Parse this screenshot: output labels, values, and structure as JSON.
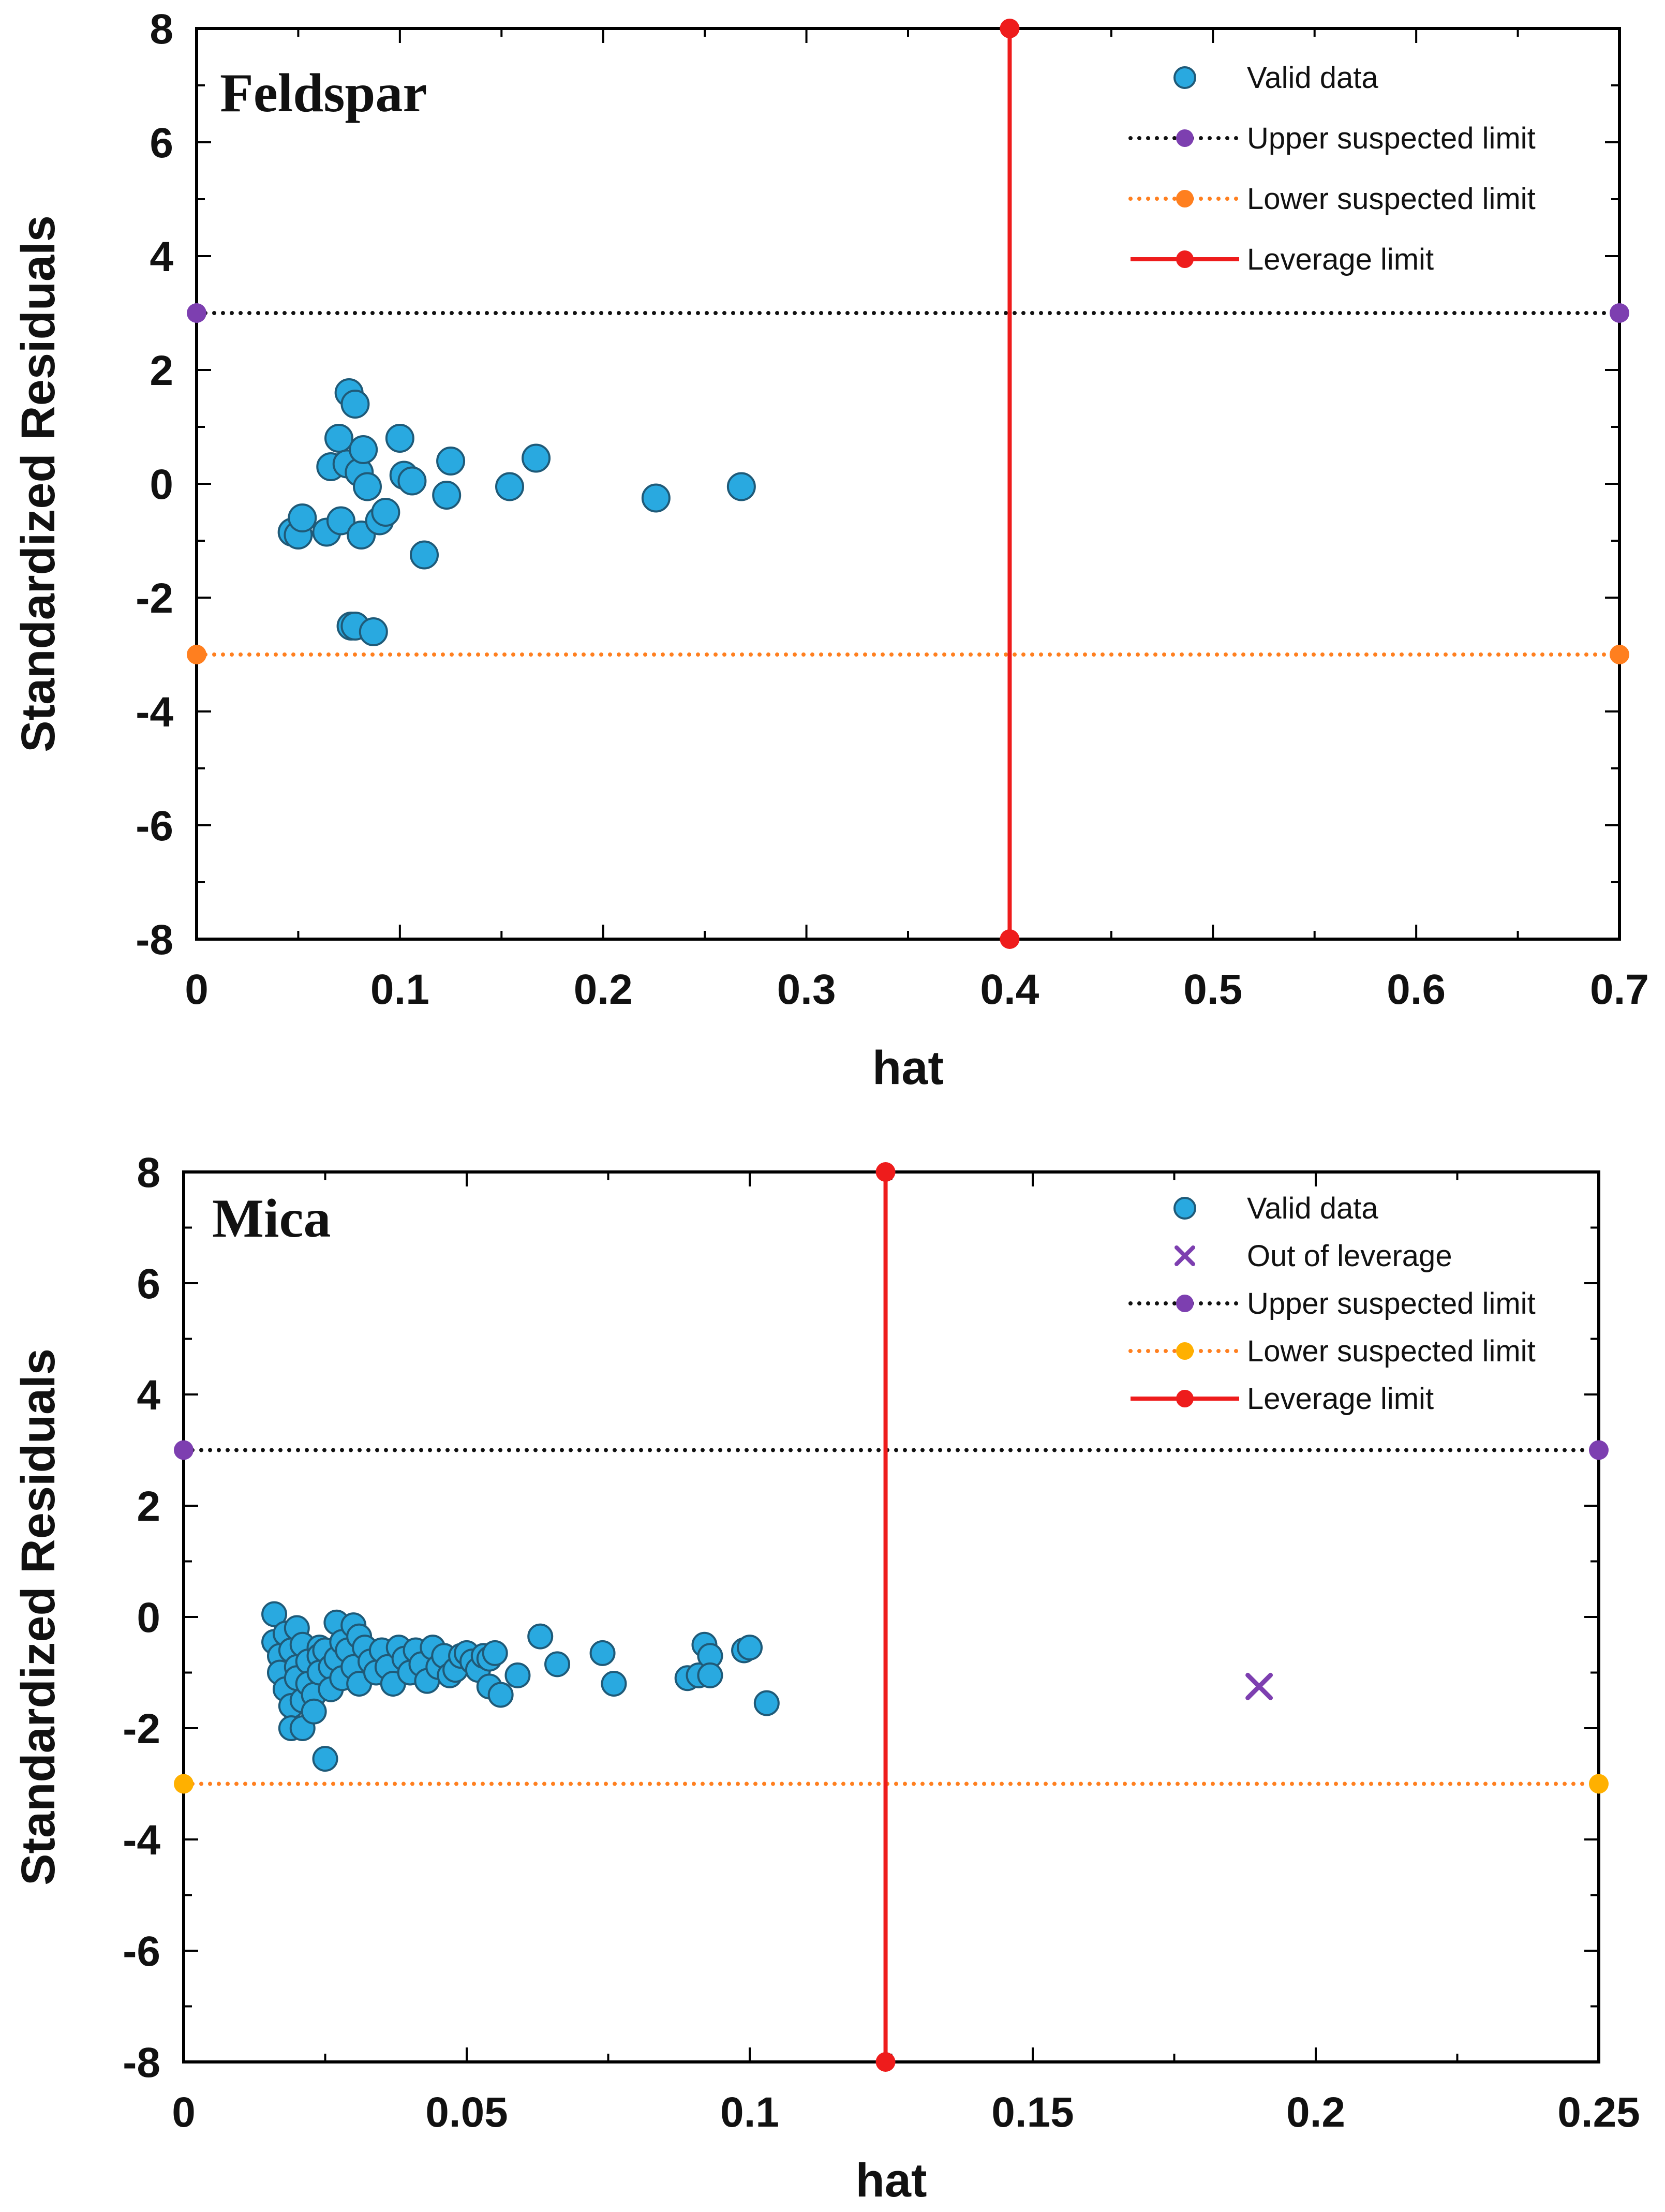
{
  "colors": {
    "valid": "#29a9e0",
    "valid_edge": "#1f5a78",
    "upper": "#111111",
    "upper_marker": "#7d3fb0",
    "lower": "#ff7f1f",
    "lower_marker_feldspar": "#ff7f1f",
    "lower_marker_mica": "#ffb000",
    "leverage": "#ee1c1c",
    "outlier": "#7d3fb0"
  },
  "chart_data": [
    {
      "type": "scatter",
      "title": "Feldspar",
      "xlabel": "hat",
      "ylabel": "Standardized Residuals",
      "xlim": [
        0,
        0.7
      ],
      "ylim": [
        -8,
        8
      ],
      "xticks": [
        0,
        0.1,
        0.2,
        0.3,
        0.4,
        0.5,
        0.6,
        0.7
      ],
      "xtick_labels": [
        "0",
        "0.1",
        "0.2",
        "0.3",
        "0.4",
        "0.5",
        "0.6",
        "0.7"
      ],
      "yticks": [
        8,
        6,
        4,
        2,
        0,
        -2,
        -4,
        -6,
        -8
      ],
      "ytick_labels": [
        "8",
        "6",
        "4",
        "2",
        "0",
        "-2",
        "-4",
        "-6",
        "-8"
      ],
      "legend_position": "top-right",
      "legend": [
        "Valid data",
        "Upper suspected limit",
        "Lower suspected limit",
        "Leverage limit"
      ],
      "series": [
        {
          "name": "Valid data",
          "points": [
            [
              0.047,
              -0.85
            ],
            [
              0.05,
              -0.9
            ],
            [
              0.052,
              -0.6
            ],
            [
              0.064,
              -0.85
            ],
            [
              0.066,
              0.3
            ],
            [
              0.07,
              0.8
            ],
            [
              0.071,
              -0.65
            ],
            [
              0.074,
              0.35
            ],
            [
              0.075,
              1.6
            ],
            [
              0.076,
              -2.5
            ],
            [
              0.078,
              -2.5
            ],
            [
              0.078,
              1.4
            ],
            [
              0.08,
              0.2
            ],
            [
              0.081,
              -0.9
            ],
            [
              0.082,
              0.6
            ],
            [
              0.084,
              -0.05
            ],
            [
              0.087,
              -2.6
            ],
            [
              0.09,
              -0.65
            ],
            [
              0.093,
              -0.5
            ],
            [
              0.1,
              0.8
            ],
            [
              0.102,
              0.15
            ],
            [
              0.106,
              0.05
            ],
            [
              0.112,
              -1.25
            ],
            [
              0.123,
              -0.2
            ],
            [
              0.125,
              0.4
            ],
            [
              0.154,
              -0.05
            ],
            [
              0.167,
              0.45
            ],
            [
              0.226,
              -0.25
            ],
            [
              0.268,
              -0.05
            ]
          ]
        },
        {
          "name": "Upper suspected limit",
          "y": 3,
          "x": [
            0,
            0.7
          ]
        },
        {
          "name": "Lower suspected limit",
          "y": -3,
          "x": [
            0,
            0.7
          ]
        },
        {
          "name": "Leverage limit",
          "x": 0.4,
          "y": [
            -8,
            8
          ]
        }
      ]
    },
    {
      "type": "scatter",
      "title": "Mica",
      "xlabel": "hat",
      "ylabel": "Standardized Residuals",
      "xlim": [
        0,
        0.25
      ],
      "ylim": [
        -8,
        8
      ],
      "xticks": [
        0,
        0.05,
        0.1,
        0.15,
        0.2,
        0.25
      ],
      "xtick_labels": [
        "0",
        "0.05",
        "0.1",
        "0.15",
        "0.2",
        "0.25"
      ],
      "yticks": [
        8,
        6,
        4,
        2,
        0,
        -2,
        -4,
        -6,
        -8
      ],
      "ytick_labels": [
        "8",
        "6",
        "4",
        "2",
        "0",
        "-2",
        "-4",
        "-6",
        "-8"
      ],
      "legend_position": "top-right",
      "legend": [
        "Valid data",
        "Out of leverage",
        "Upper suspected limit",
        "Lower suspected limit",
        "Leverage limit"
      ],
      "series": [
        {
          "name": "Valid data",
          "points": [
            [
              0.016,
              0.05
            ],
            [
              0.016,
              -0.45
            ],
            [
              0.017,
              -0.7
            ],
            [
              0.017,
              -1.0
            ],
            [
              0.018,
              -0.3
            ],
            [
              0.018,
              -1.3
            ],
            [
              0.019,
              -0.6
            ],
            [
              0.019,
              -1.6
            ],
            [
              0.019,
              -2.0
            ],
            [
              0.02,
              -0.2
            ],
            [
              0.02,
              -0.9
            ],
            [
              0.02,
              -1.1
            ],
            [
              0.021,
              -2.0
            ],
            [
              0.021,
              -0.5
            ],
            [
              0.021,
              -1.5
            ],
            [
              0.022,
              -0.8
            ],
            [
              0.022,
              -1.2
            ],
            [
              0.023,
              -1.4
            ],
            [
              0.023,
              -1.7
            ],
            [
              0.024,
              -0.55
            ],
            [
              0.024,
              -0.7
            ],
            [
              0.024,
              -1.0
            ],
            [
              0.025,
              -2.55
            ],
            [
              0.025,
              -0.6
            ],
            [
              0.026,
              -0.9
            ],
            [
              0.026,
              -1.3
            ],
            [
              0.027,
              -0.1
            ],
            [
              0.027,
              -0.75
            ],
            [
              0.028,
              -1.1
            ],
            [
              0.028,
              -0.45
            ],
            [
              0.029,
              -0.6
            ],
            [
              0.03,
              -0.15
            ],
            [
              0.03,
              -0.9
            ],
            [
              0.031,
              -1.2
            ],
            [
              0.031,
              -0.35
            ],
            [
              0.032,
              -0.55
            ],
            [
              0.033,
              -0.8
            ],
            [
              0.034,
              -1.0
            ],
            [
              0.035,
              -0.6
            ],
            [
              0.036,
              -0.9
            ],
            [
              0.037,
              -1.2
            ],
            [
              0.038,
              -0.55
            ],
            [
              0.039,
              -0.75
            ],
            [
              0.04,
              -1.0
            ],
            [
              0.041,
              -0.6
            ],
            [
              0.042,
              -0.85
            ],
            [
              0.043,
              -1.15
            ],
            [
              0.044,
              -0.55
            ],
            [
              0.045,
              -0.9
            ],
            [
              0.046,
              -0.7
            ],
            [
              0.047,
              -1.05
            ],
            [
              0.048,
              -0.95
            ],
            [
              0.049,
              -0.7
            ],
            [
              0.05,
              -0.65
            ],
            [
              0.051,
              -0.8
            ],
            [
              0.052,
              -0.95
            ],
            [
              0.053,
              -0.7
            ],
            [
              0.054,
              -0.75
            ],
            [
              0.054,
              -1.25
            ],
            [
              0.055,
              -0.65
            ],
            [
              0.056,
              -1.4
            ],
            [
              0.059,
              -1.05
            ],
            [
              0.063,
              -0.35
            ],
            [
              0.066,
              -0.85
            ],
            [
              0.074,
              -0.65
            ],
            [
              0.076,
              -1.2
            ],
            [
              0.089,
              -1.1
            ],
            [
              0.091,
              -1.05
            ],
            [
              0.092,
              -0.5
            ],
            [
              0.093,
              -0.7
            ],
            [
              0.093,
              -1.05
            ],
            [
              0.099,
              -0.6
            ],
            [
              0.1,
              -0.55
            ],
            [
              0.103,
              -1.55
            ]
          ]
        },
        {
          "name": "Out of leverage",
          "points": [
            [
              0.19,
              -1.25
            ]
          ]
        },
        {
          "name": "Upper suspected limit",
          "y": 3,
          "x": [
            0,
            0.25
          ]
        },
        {
          "name": "Lower suspected limit",
          "y": -3,
          "x": [
            0,
            0.25
          ]
        },
        {
          "name": "Leverage limit",
          "x": 0.124,
          "y": [
            -8,
            8
          ]
        }
      ]
    }
  ]
}
